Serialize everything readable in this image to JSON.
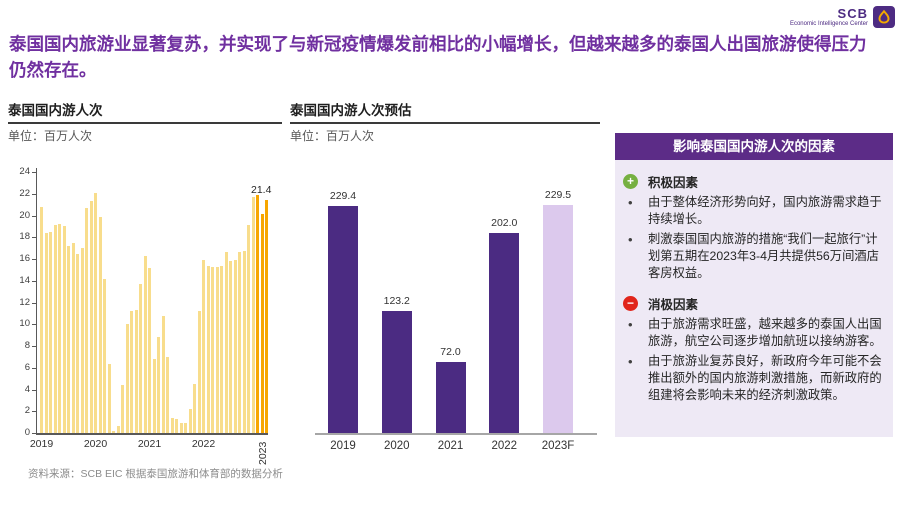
{
  "header": {
    "logo": {
      "brand": "SCB",
      "tagline": "Economic Intelligence Center"
    },
    "title": "泰国国内旅游业显著复苏，并实现了与新冠疫情爆发前相比的小幅增长，但越来越多的泰国人出国旅游使得压力仍然存在。"
  },
  "colors": {
    "title_purple": "#7030a0",
    "monthly_bar_yellow": "#f8dd8c",
    "monthly_bar_orange": "#f7a600",
    "annual_bar_purple": "#4b2b82",
    "annual_bar_forecast_lavender": "#dcc9ed",
    "panel_bg": "#eee9f5",
    "panel_header_bg": "#5c2c87",
    "positive_green": "#76b041",
    "negative_red": "#e1251b"
  },
  "chart_data": [
    {
      "type": "bar",
      "title": "泰国国内游人次",
      "unit_label": "单位：百万人次",
      "granularity": "monthly",
      "ylim": [
        0,
        24
      ],
      "ytick_step": 2,
      "years": [
        "2019",
        "2020",
        "2021",
        "2022",
        "2023"
      ],
      "year_start_indices": [
        0,
        12,
        24,
        36,
        48
      ],
      "values": [
        20.8,
        18.4,
        18.5,
        19.1,
        19.2,
        19.0,
        17.2,
        17.5,
        16.5,
        17.0,
        20.7,
        21.3,
        22.1,
        19.9,
        14.2,
        6.3,
        0.2,
        0.6,
        4.4,
        10.0,
        11.2,
        11.3,
        13.7,
        16.3,
        15.2,
        6.8,
        8.8,
        10.8,
        7.0,
        1.4,
        1.3,
        0.9,
        0.9,
        2.2,
        4.5,
        11.2,
        15.9,
        15.4,
        15.3,
        15.3,
        15.4,
        16.6,
        15.8,
        15.9,
        16.6,
        16.7,
        19.1,
        21.7,
        21.9,
        20.1,
        21.4
      ],
      "highlight_from_index": 48,
      "annotation": {
        "text": "21.4",
        "index": 50
      },
      "bar_color": "#f8dd8c",
      "highlight_color": "#f7a600",
      "grid": false,
      "legend": false
    },
    {
      "type": "bar",
      "title": "泰国国内游人次预估",
      "unit_label": "单位：百万人次",
      "categories": [
        "2019",
        "2020",
        "2021",
        "2022",
        "2023F"
      ],
      "values": [
        229.4,
        123.2,
        72.0,
        202.0,
        229.5
      ],
      "labels": [
        "229.4",
        "123.2",
        "72.0",
        "202.0",
        "229.5"
      ],
      "forecast_index": 4,
      "bar_color": "#4b2b82",
      "forecast_color": "#dcc9ed",
      "ylim": [
        0,
        240
      ],
      "grid": false,
      "legend": false
    }
  ],
  "factors_panel": {
    "header": "影响泰国国内游人次的因素",
    "sections": [
      {
        "icon": "plus-circle",
        "icon_glyph": "+",
        "heading": "积极因素",
        "bullets": [
          "由于整体经济形势向好，国内旅游需求趋于持续增长。",
          "刺激泰国国内旅游的措施“我们一起旅行”计划第五期在2023年3-4月共提供56万间酒店客房权益。"
        ]
      },
      {
        "icon": "minus-circle",
        "icon_glyph": "−",
        "heading": "消极因素",
        "bullets": [
          "由于旅游需求旺盛，越来越多的泰国人出国旅游，航空公司逐步增加航班以接纳游客。",
          "由于旅游业复苏良好，新政府今年可能不会推出额外的国内旅游刺激措施，而新政府的组建将会影响未来的经济刺激政策。"
        ]
      }
    ]
  },
  "footer": {
    "source": "资料来源：SCB EIC 根据泰国旅游和体育部的数据分析"
  }
}
